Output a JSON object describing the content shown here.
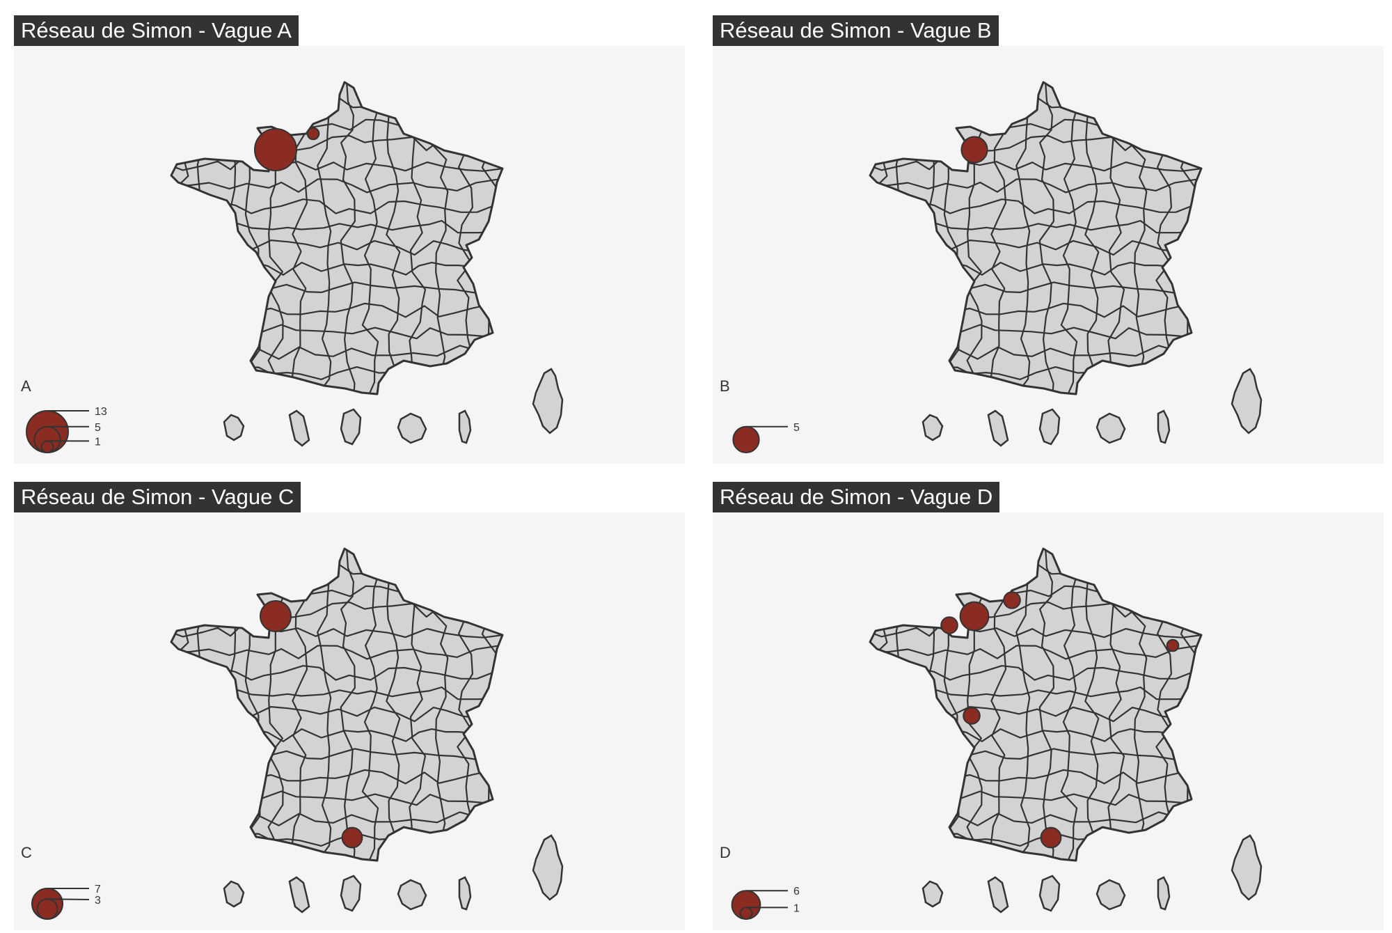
{
  "colors": {
    "symbol": "#8b2c22",
    "land": "#d3d3d3",
    "border": "#333333",
    "panel_bg": "#f5f5f5",
    "title_bg": "#333333"
  },
  "panels": [
    {
      "title": "Réseau de Simon - Vague A",
      "legend": {
        "title": "A",
        "values": [
          "13",
          "5",
          "1"
        ],
        "max": 13
      },
      "points": [
        {
          "place": "Calvados",
          "value": 13
        },
        {
          "place": "Seine-Maritime",
          "value": 1
        }
      ]
    },
    {
      "title": "Réseau de Simon - Vague B",
      "legend": {
        "title": "B",
        "values": [
          "5"
        ],
        "max": 5
      },
      "points": [
        {
          "place": "Calvados",
          "value": 5
        }
      ]
    },
    {
      "title": "Réseau de Simon - Vague C",
      "legend": {
        "title": "C",
        "values": [
          "7",
          "3"
        ],
        "max": 7
      },
      "points": [
        {
          "place": "Calvados",
          "value": 7
        },
        {
          "place": "Hérault",
          "value": 3
        }
      ]
    },
    {
      "title": "Réseau de Simon - Vague D",
      "legend": {
        "title": "D",
        "values": [
          "6",
          "1"
        ],
        "max": 6
      },
      "points": [
        {
          "place": "Calvados",
          "value": 6
        },
        {
          "place": "Manche",
          "value": 2
        },
        {
          "place": "Seine-Maritime",
          "value": 2
        },
        {
          "place": "Vienne",
          "value": 2
        },
        {
          "place": "Hérault",
          "value": 3
        },
        {
          "place": "Bas-Rhin",
          "value": 1
        }
      ]
    }
  ]
}
